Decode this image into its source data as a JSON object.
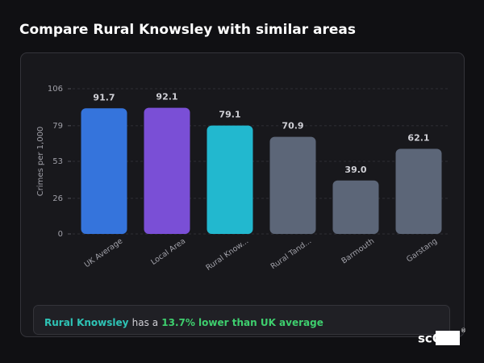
{
  "chart_data": {
    "type": "bar",
    "title": "Compare Rural Knowsley with similar areas",
    "y_label": "Crimes per 1,000",
    "categories": [
      "UK Average",
      "Local Area",
      "Rural Know...",
      "Rural Tand...",
      "Barmouth",
      "Garstang"
    ],
    "values": [
      91.7,
      92.1,
      79.1,
      70.9,
      39.0,
      62.1
    ],
    "value_labels": [
      "91.7",
      "92.1",
      "79.1",
      "70.9",
      "39.0",
      "62.1"
    ],
    "colors": [
      "#3574dc",
      "#7a4fd6",
      "#22b8cf",
      "#5c6678",
      "#5c6678",
      "#5c6678"
    ],
    "ylim": [
      0,
      106
    ],
    "yticks": [
      0,
      26,
      53,
      79,
      106
    ],
    "grid": true
  },
  "note": {
    "area": "Rural Knowsley",
    "text": "has a",
    "highlight": "13.7% lower than UK average"
  },
  "logo": {
    "text": "scOS",
    "mark": "®"
  }
}
